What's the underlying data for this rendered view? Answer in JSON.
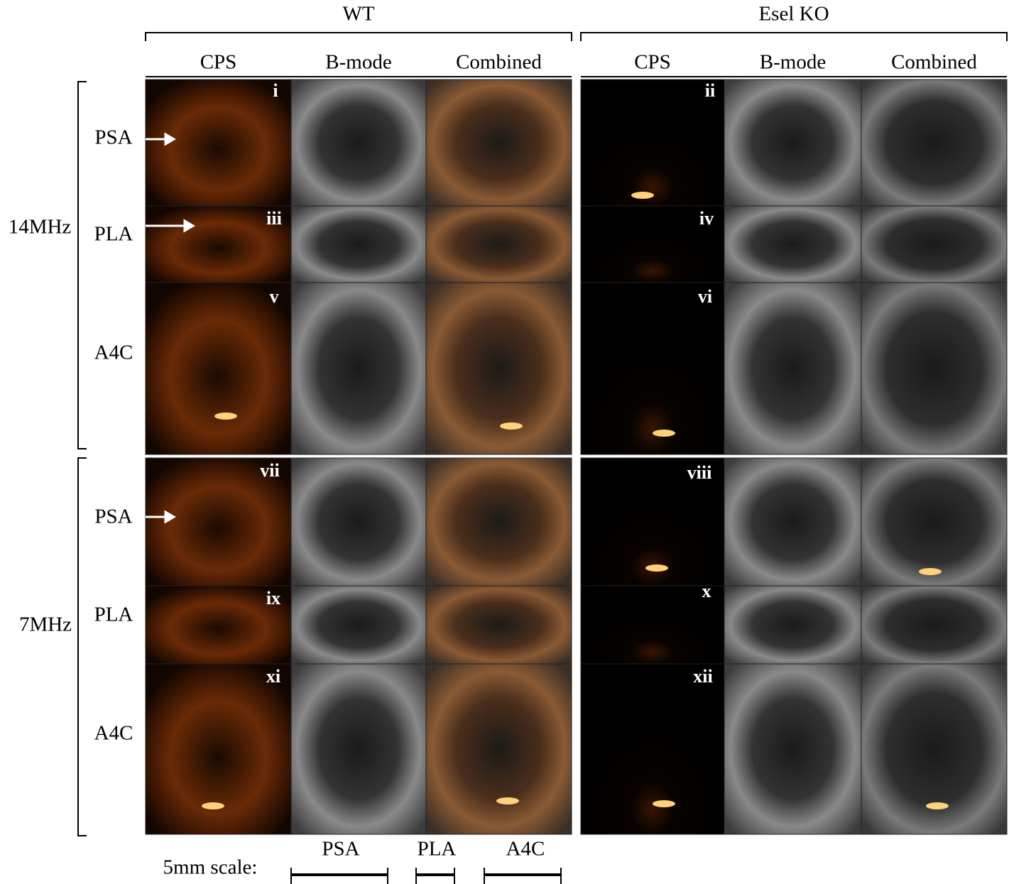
{
  "groups": [
    {
      "title": "WT",
      "columns": [
        "CPS",
        "B-mode",
        "Combined"
      ]
    },
    {
      "title": "Esel KO",
      "columns": [
        "CPS",
        "B-mode",
        "Combined"
      ]
    }
  ],
  "frequencies": [
    {
      "label": "14MHz",
      "views": [
        "PSA",
        "PLA",
        "A4C"
      ]
    },
    {
      "label": "7MHz",
      "views": [
        "PSA",
        "PLA",
        "A4C"
      ]
    }
  ],
  "panels": [
    "i",
    "ii",
    "iii",
    "iv",
    "v",
    "vi",
    "vii",
    "viii",
    "ix",
    "x",
    "xi",
    "xii"
  ],
  "scale": {
    "label": "5mm scale:",
    "bars": [
      "PSA",
      "PLA",
      "A4C"
    ]
  }
}
